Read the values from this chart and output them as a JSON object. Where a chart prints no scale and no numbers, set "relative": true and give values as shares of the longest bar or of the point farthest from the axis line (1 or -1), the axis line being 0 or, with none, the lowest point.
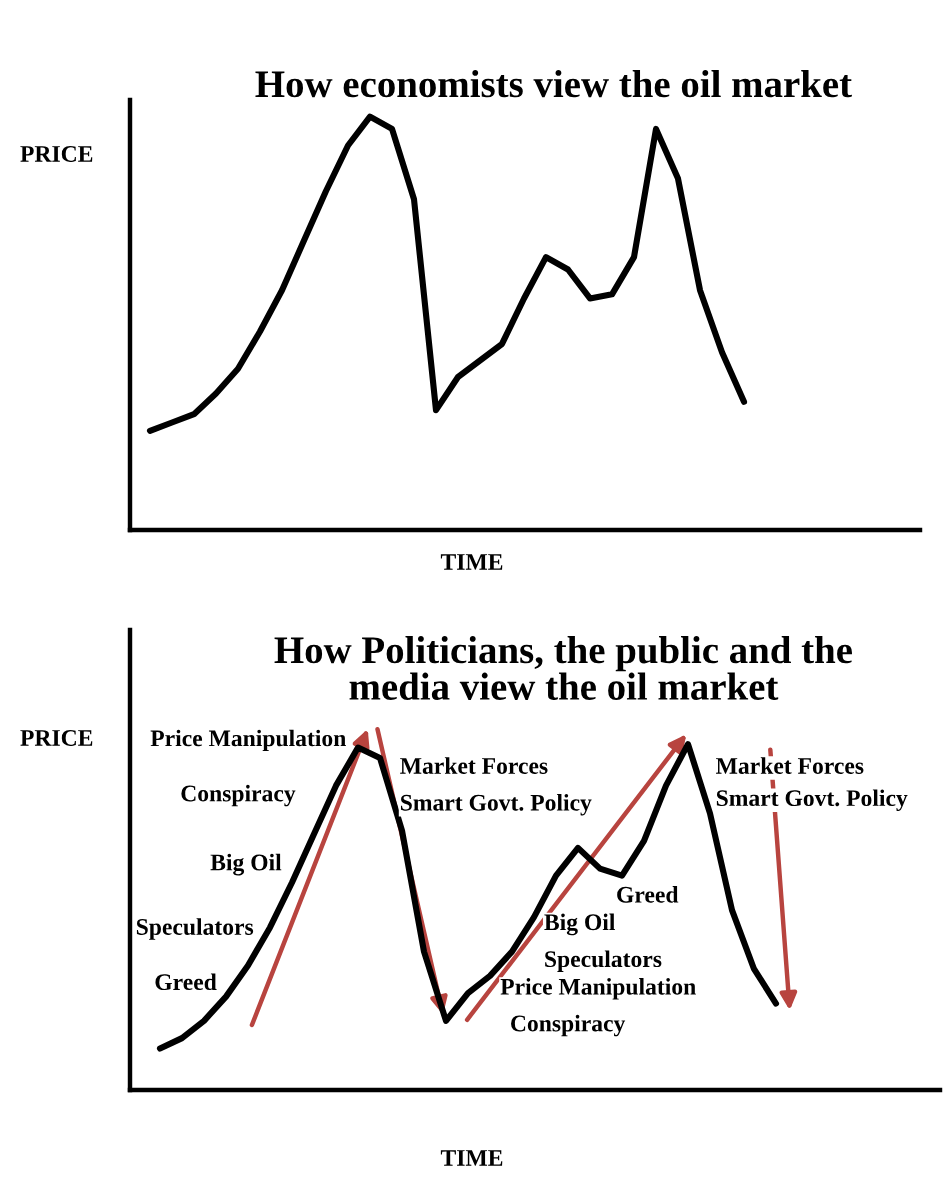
{
  "chart_data": [
    {
      "type": "line",
      "relative": true,
      "title": "How economists view the oil market",
      "xlabel": "TIME",
      "ylabel": "PRICE",
      "categories": [
        null,
        null,
        null,
        null,
        null,
        null,
        null,
        null,
        null,
        null,
        null,
        null,
        null,
        null,
        null,
        null,
        null,
        null,
        null,
        null,
        null,
        null,
        null,
        null,
        null,
        null,
        null,
        null
      ],
      "series": [
        {
          "color": "#000000",
          "values": [
            0.24,
            0.26,
            0.28,
            0.33,
            0.39,
            0.48,
            0.58,
            0.7,
            0.82,
            0.93,
            1.0,
            0.97,
            0.8,
            0.29,
            0.37,
            0.41,
            0.45,
            0.56,
            0.66,
            0.63,
            0.56,
            0.57,
            0.66,
            0.97,
            0.85,
            0.58,
            0.43,
            0.31
          ]
        }
      ]
    },
    {
      "type": "line",
      "relative": true,
      "title": "How Politicians, the public and the\nmedia view the oil market",
      "xlabel": "TIME",
      "ylabel": "PRICE",
      "categories": [
        null,
        null,
        null,
        null,
        null,
        null,
        null,
        null,
        null,
        null,
        null,
        null,
        null,
        null,
        null,
        null,
        null,
        null,
        null,
        null,
        null,
        null,
        null,
        null,
        null,
        null,
        null,
        null,
        null
      ],
      "series": [
        {
          "color": "#000000",
          "values": [
            0.12,
            0.15,
            0.2,
            0.27,
            0.36,
            0.47,
            0.6,
            0.74,
            0.88,
            0.99,
            0.96,
            0.75,
            0.4,
            0.2,
            0.28,
            0.33,
            0.4,
            0.5,
            0.62,
            0.7,
            0.64,
            0.62,
            0.72,
            0.88,
            1.0,
            0.8,
            0.52,
            0.35,
            0.25
          ]
        }
      ],
      "annotations": [
        "Price Manipulation",
        "Conspiracy",
        "Big Oil",
        "Speculators",
        "Greed",
        "Market Forces",
        "Smart Govt. Policy",
        "Greed",
        "Big Oil",
        "Speculators",
        "Price Manipulation",
        "Conspiracy",
        "Market Forces",
        "Smart Govt. Policy"
      ]
    }
  ]
}
